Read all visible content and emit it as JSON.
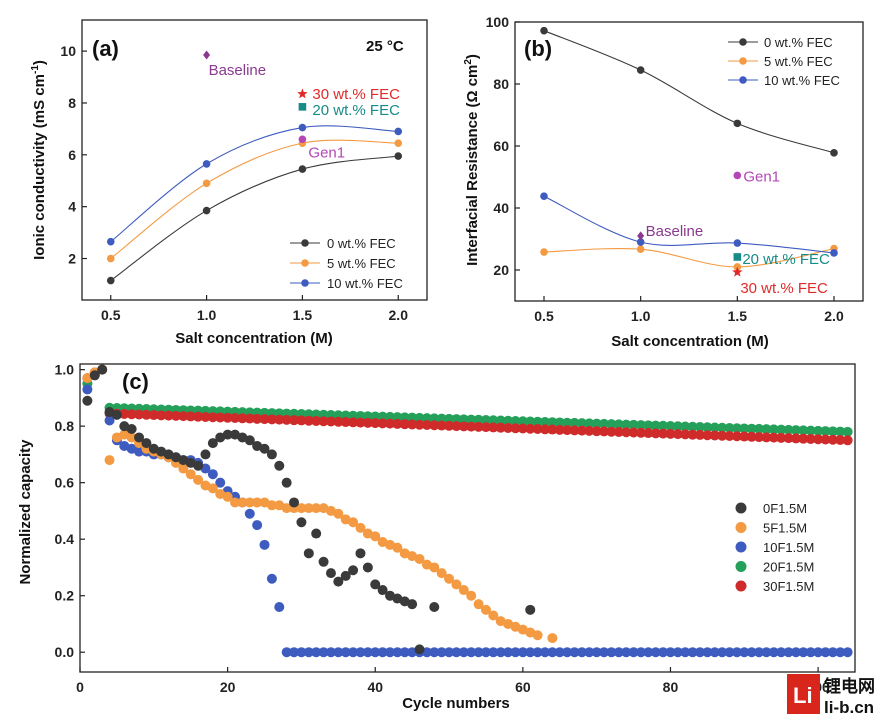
{
  "colors": {
    "black": "#3a3a3a",
    "orange": "#f39a42",
    "blue": "#3e5bc0",
    "green": "#24a05a",
    "red": "#cf2b2b",
    "purple": "#8a3a8e",
    "teal": "#178b88",
    "magenta": "#b347b5",
    "annRed": "#e02a2a"
  },
  "chart_data": [
    {
      "type": "line",
      "panel_label": "(a)",
      "title": "",
      "condition_label": "25 °C",
      "xlabel": "Salt concentration (M)",
      "ylabel": "Ionic conductivity (mS cm",
      "ylabel_sup": "-1",
      "ylabel_end": ")",
      "xlim": [
        0.35,
        2.15
      ],
      "ylim": [
        0.4,
        11.2
      ],
      "x_ticks": [
        0.5,
        1.0,
        1.5,
        2.0
      ],
      "x_tick_labels": [
        "0.5",
        "1.0",
        "1.5",
        "2.0"
      ],
      "y_ticks": [
        2,
        4,
        6,
        8,
        10
      ],
      "y_tick_labels": [
        "2",
        "4",
        "6",
        "8",
        "10"
      ],
      "legend_position": "bottom-right",
      "x": [
        0.5,
        1.0,
        1.5,
        2.0
      ],
      "series": [
        {
          "name": "0 wt.% FEC",
          "values": [
            1.15,
            3.85,
            5.45,
            5.95
          ]
        },
        {
          "name": "5 wt.% FEC",
          "values": [
            2.0,
            4.9,
            6.45,
            6.45
          ]
        },
        {
          "name": "10 wt.% FEC",
          "values": [
            2.65,
            5.65,
            7.05,
            6.9
          ]
        }
      ],
      "annotations": [
        {
          "label": "Baseline",
          "x": 1.0,
          "y": 9.85,
          "marker": "diamond"
        },
        {
          "label": "30 wt.% FEC",
          "x": 1.5,
          "y": 8.35,
          "marker": "star"
        },
        {
          "label": "20 wt.% FEC",
          "x": 1.5,
          "y": 7.85,
          "marker": "square"
        },
        {
          "label": "Gen1",
          "x": 1.5,
          "y": 6.6,
          "marker": "circle"
        }
      ]
    },
    {
      "type": "line",
      "panel_label": "(b)",
      "title": "",
      "xlabel": "Salt concentration (M)",
      "ylabel": "Interfacial Resistance (Ω cm",
      "ylabel_sup": "2",
      "ylabel_end": ")",
      "xlim": [
        0.35,
        2.15
      ],
      "ylim": [
        10,
        100
      ],
      "x_ticks": [
        0.5,
        1.0,
        1.5,
        2.0
      ],
      "x_tick_labels": [
        "0.5",
        "1.0",
        "1.5",
        "2.0"
      ],
      "y_ticks": [
        20,
        40,
        60,
        80,
        100
      ],
      "y_tick_labels": [
        "20",
        "40",
        "60",
        "80",
        "100"
      ],
      "legend_position": "top-right",
      "x": [
        0.5,
        1.0,
        1.5,
        2.0
      ],
      "series": [
        {
          "name": "0 wt.% FEC",
          "values": [
            97.2,
            84.5,
            67.3,
            57.8
          ]
        },
        {
          "name": "5 wt.% FEC",
          "values": [
            25.8,
            26.7,
            21.0,
            26.9
          ]
        },
        {
          "name": "10 wt.% FEC",
          "values": [
            43.8,
            29.0,
            28.7,
            25.5
          ]
        }
      ],
      "annotations": [
        {
          "label": "Gen1",
          "x": 1.5,
          "y": 50.5,
          "marker": "circle"
        },
        {
          "label": "Baseline",
          "x": 1.0,
          "y": 31.0,
          "marker": "diamond"
        },
        {
          "label": "20 wt.% FEC",
          "x": 1.5,
          "y": 24.2,
          "marker": "square"
        },
        {
          "label": "30 wt.% FEC",
          "x": 1.5,
          "y": 19.3,
          "marker": "star"
        }
      ]
    },
    {
      "type": "scatter",
      "panel_label": "(c)",
      "title": "",
      "xlabel": "Cycle numbers",
      "ylabel": "Normalized capacity",
      "xlim": [
        0,
        105
      ],
      "ylim": [
        -0.07,
        1.02
      ],
      "x_ticks": [
        0,
        20,
        40,
        60,
        80,
        100
      ],
      "x_tick_labels": [
        "0",
        "20",
        "40",
        "60",
        "80",
        "100"
      ],
      "y_ticks": [
        0.0,
        0.2,
        0.4,
        0.6,
        0.8,
        1.0
      ],
      "y_tick_labels": [
        "0.0",
        "0.2",
        "0.4",
        "0.6",
        "0.8",
        "1.0"
      ],
      "legend_position": "bottom-right",
      "series": [
        {
          "name": "0F1.5M",
          "x": [
            1,
            2,
            3,
            4,
            5,
            6,
            7,
            8,
            9,
            10,
            11,
            12,
            13,
            14,
            15,
            16,
            17,
            18,
            19,
            20,
            21,
            22,
            23,
            24,
            25,
            26,
            27,
            28,
            29,
            30,
            31,
            32,
            33,
            34,
            35,
            36,
            37,
            38,
            39,
            40,
            41,
            42,
            43,
            44,
            45,
            46,
            48,
            61
          ],
          "values": [
            0.89,
            0.98,
            1.0,
            0.85,
            0.84,
            0.8,
            0.79,
            0.76,
            0.74,
            0.72,
            0.71,
            0.7,
            0.69,
            0.68,
            0.67,
            0.66,
            0.7,
            0.74,
            0.76,
            0.77,
            0.77,
            0.76,
            0.75,
            0.73,
            0.72,
            0.7,
            0.66,
            0.6,
            0.53,
            0.46,
            0.35,
            0.42,
            0.32,
            0.28,
            0.25,
            0.27,
            0.29,
            0.35,
            0.3,
            0.24,
            0.22,
            0.2,
            0.19,
            0.18,
            0.17,
            0.01,
            0.16,
            0.15
          ]
        },
        {
          "name": "5F1.5M",
          "x": [
            1,
            2,
            3,
            4,
            5,
            6,
            7,
            8,
            9,
            10,
            11,
            12,
            13,
            14,
            15,
            16,
            17,
            18,
            19,
            20,
            21,
            22,
            23,
            24,
            25,
            26,
            27,
            28,
            29,
            30,
            31,
            32,
            33,
            34,
            35,
            36,
            37,
            38,
            39,
            40,
            41,
            42,
            43,
            44,
            45,
            46,
            47,
            48,
            49,
            50,
            51,
            52,
            53,
            54,
            55,
            56,
            57,
            58,
            59,
            60,
            61,
            62,
            64
          ],
          "values": [
            0.97,
            0.99,
            1.0,
            0.68,
            0.76,
            0.77,
            0.76,
            0.74,
            0.72,
            0.71,
            0.7,
            0.69,
            0.67,
            0.65,
            0.63,
            0.61,
            0.59,
            0.58,
            0.56,
            0.55,
            0.53,
            0.53,
            0.53,
            0.53,
            0.53,
            0.52,
            0.52,
            0.51,
            0.51,
            0.51,
            0.51,
            0.51,
            0.51,
            0.5,
            0.49,
            0.47,
            0.46,
            0.44,
            0.42,
            0.41,
            0.39,
            0.38,
            0.37,
            0.35,
            0.34,
            0.33,
            0.31,
            0.3,
            0.28,
            0.26,
            0.24,
            0.22,
            0.2,
            0.17,
            0.15,
            0.13,
            0.11,
            0.1,
            0.09,
            0.08,
            0.07,
            0.06,
            0.05
          ]
        },
        {
          "name": "10F1.5M",
          "x": [
            1,
            2,
            3,
            4,
            5,
            6,
            7,
            8,
            9,
            10,
            11,
            12,
            13,
            14,
            15,
            16,
            17,
            18,
            19,
            20,
            21,
            22,
            23,
            24,
            25,
            26,
            27,
            28,
            29,
            30,
            31,
            32,
            33,
            34,
            35,
            36,
            37,
            38,
            39,
            40,
            41,
            42,
            43,
            44,
            45,
            46,
            47,
            48,
            49,
            50,
            51,
            52,
            53,
            54,
            55,
            56,
            57,
            58,
            59,
            60,
            61,
            62,
            63,
            64,
            65,
            66,
            67,
            68,
            69,
            70,
            71,
            72,
            73,
            74,
            75,
            76,
            77,
            78,
            79,
            80,
            81,
            82,
            83,
            84,
            85,
            86,
            87,
            88,
            89,
            90,
            91,
            92,
            93,
            94,
            95,
            96,
            97,
            98,
            99,
            100,
            101,
            102,
            103,
            104
          ],
          "values": [
            0.93,
            0.98,
            1.0,
            0.82,
            0.75,
            0.73,
            0.72,
            0.71,
            0.71,
            0.7,
            0.7,
            0.69,
            0.69,
            0.68,
            0.68,
            0.67,
            0.65,
            0.63,
            0.6,
            0.57,
            0.55,
            0.53,
            0.49,
            0.45,
            0.38,
            0.26,
            0.16,
            0.0,
            0.0,
            0.0,
            0.0,
            0.0,
            0.0,
            0.0,
            0.0,
            0.0,
            0.0,
            0.0,
            0.0,
            0.0,
            0.0,
            0.0,
            0.0,
            0.0,
            0.0,
            0.0,
            0.0,
            0.0,
            0.0,
            0.0,
            0.0,
            0.0,
            0.0,
            0.0,
            0.0,
            0.0,
            0.0,
            0.0,
            0.0,
            0.0,
            0.0,
            0.0,
            0.0,
            0.0,
            0.0,
            0.0,
            0.0,
            0.0,
            0.0,
            0.0,
            0.0,
            0.0,
            0.0,
            0.0,
            0.0,
            0.0,
            0.0,
            0.0,
            0.0,
            0.0,
            0.0,
            0.0,
            0.0,
            0.0,
            0.0,
            0.0,
            0.0,
            0.0,
            0.0,
            0.0,
            0.0,
            0.0,
            0.0,
            0.0,
            0.0,
            0.0,
            0.0,
            0.0,
            0.0,
            0.0,
            0.0,
            0.0,
            0.0,
            0.0
          ]
        },
        {
          "name": "20F1.5M",
          "x_range": [
            1,
            104
          ],
          "start_values": [
            0.95,
            0.99,
            1.0
          ],
          "plateau_start": 0.865,
          "plateau_end": 0.78
        },
        {
          "name": "30F1.5M",
          "x_range": [
            1,
            104
          ],
          "start_values": [
            0.97,
            0.99,
            1.0
          ],
          "plateau_start": 0.845,
          "plateau_end": 0.75
        }
      ]
    }
  ],
  "watermark": {
    "logo_text": "Li",
    "line1": "锂电网",
    "line2": "li-b.cn"
  }
}
